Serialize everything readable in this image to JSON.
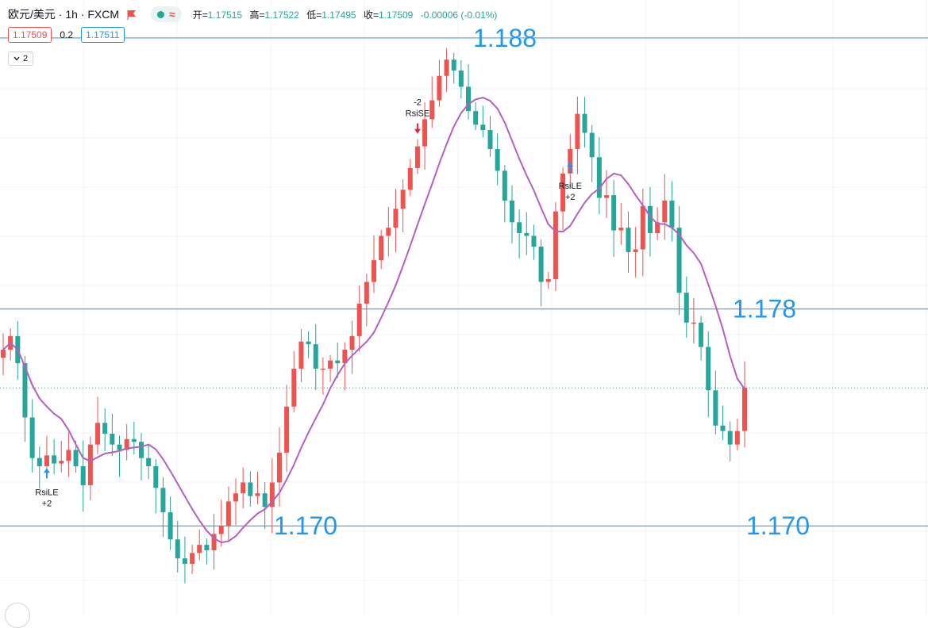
{
  "header": {
    "symbol": "欧元/美元 · 1h · FXCM",
    "open_label": "开=",
    "open": "1.17515",
    "high_label": "高=",
    "high": "1.17522",
    "low_label": "低=",
    "low": "1.17495",
    "close_label": "收=",
    "close": "1.17509",
    "change": "-0.00006 (-0.01%)",
    "pill_icons": [
      "live-dot-icon",
      "wave-icon"
    ],
    "flag_color": "#ef5350"
  },
  "trade": {
    "sell": "1.17509",
    "spread": "0.2",
    "buy": "1.17511"
  },
  "panel": {
    "collapse_label": "2"
  },
  "levels": [
    {
      "label": "1.188",
      "price": 1.188
    },
    {
      "label": "1.178",
      "price": 1.178
    },
    {
      "label": "1.170",
      "price": 1.17
    },
    {
      "label": "1.170",
      "price": 1.17
    }
  ],
  "signals": [
    {
      "text": "RsiLE",
      "qty": "+2",
      "type": "long"
    },
    {
      "text": "RsiSE",
      "qty": "-2",
      "type": "short"
    },
    {
      "text": "RsiLE",
      "qty": "+2",
      "type": "long"
    }
  ],
  "colors": {
    "up": "#ef5350",
    "down": "#26a69a",
    "ma": "#b45fc5",
    "level": "#2196f3",
    "level_line": "#3a8fc4"
  },
  "chart_data": {
    "type": "candlestick",
    "symbol": "EUR/USD",
    "interval": "1h",
    "current_price": 1.17509,
    "ylim": [
      1.1667,
      1.1894
    ],
    "close_series": [
      1.1765,
      1.177,
      1.176,
      1.174,
      1.1725,
      1.1722,
      1.1726,
      1.1723,
      1.1724,
      1.1728,
      1.1722,
      1.1715,
      1.173,
      1.1738,
      1.1734,
      1.173,
      1.1728,
      1.1732,
      1.1731,
      1.1725,
      1.1722,
      1.1714,
      1.1705,
      1.1695,
      1.1688,
      1.1686,
      1.169,
      1.1693,
      1.1691,
      1.1697,
      1.17,
      1.1709,
      1.1712,
      1.1716,
      1.1711,
      1.1712,
      1.1707,
      1.1716,
      1.1727,
      1.1744,
      1.1758,
      1.1768,
      1.1767,
      1.1758,
      1.1758,
      1.1761,
      1.176,
      1.1765,
      1.177,
      1.1782,
      1.179,
      1.1798,
      1.1807,
      1.181,
      1.1817,
      1.1824,
      1.1832,
      1.184,
      1.185,
      1.1857,
      1.1866,
      1.1872,
      1.1868,
      1.1862,
      1.1853,
      1.1848,
      1.1846,
      1.1839,
      1.1831,
      1.182,
      1.1812,
      1.1808,
      1.1807,
      1.1803,
      1.179,
      1.1791,
      1.1816,
      1.183,
      1.1839,
      1.1852,
      1.1845,
      1.1836,
      1.1821,
      1.1822,
      1.1809,
      1.181,
      1.1801,
      1.1802,
      1.1818,
      1.1808,
      1.1812,
      1.182,
      1.181,
      1.1786,
      1.1775,
      1.1775,
      1.1766,
      1.175,
      1.1737,
      1.1735,
      1.173,
      1.1735,
      1.1751
    ]
  }
}
